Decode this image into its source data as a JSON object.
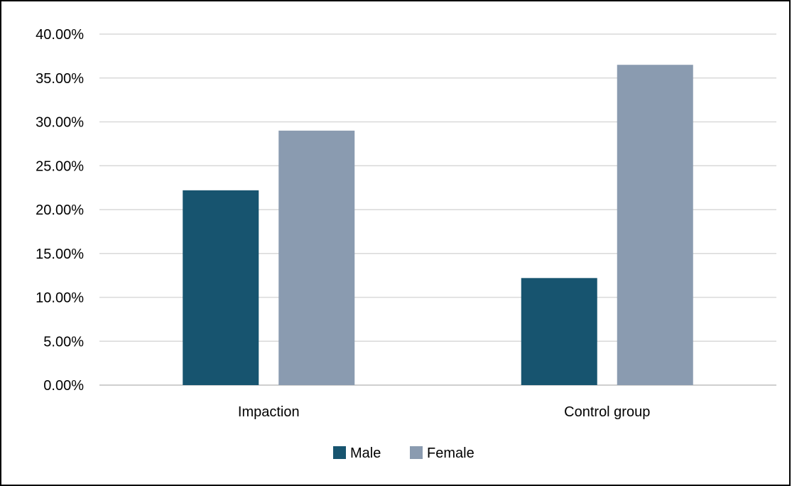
{
  "chart_data": {
    "type": "bar",
    "categories": [
      "Impaction",
      "Control group"
    ],
    "series": [
      {
        "name": "Male",
        "values": [
          22.2,
          12.2
        ],
        "color": "#17546f"
      },
      {
        "name": "Female",
        "values": [
          29.0,
          36.5
        ],
        "color": "#8a9bb0"
      }
    ],
    "y_ticks": [
      "0.00%",
      "5.00%",
      "10.00%",
      "15.00%",
      "20.00%",
      "25.00%",
      "30.00%",
      "35.00%",
      "40.00%"
    ],
    "ylim": [
      0,
      40
    ],
    "y_unit": "%",
    "grid": true,
    "legend_position": "bottom"
  }
}
